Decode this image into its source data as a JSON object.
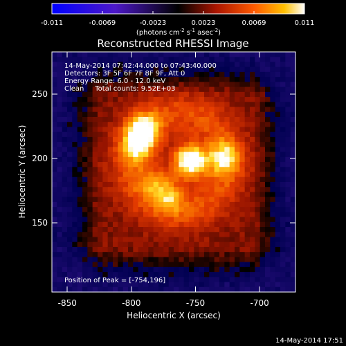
{
  "colorbar": {
    "ticks": [
      "-0.011",
      "-0.0069",
      "-0.0023",
      "0.0023",
      "0.0069",
      "0.011"
    ],
    "unit_parts": [
      "(photons cm",
      "-2",
      " s",
      "-1",
      " asec",
      "-2",
      ")"
    ]
  },
  "title": "Reconstructed RHESSI Image",
  "info": {
    "line1": "14-May-2014 07:42:44.000 to 07:43:40.000",
    "line2": "Detectors: 3F 5F 6F 7F 8F 9F, Att 0",
    "line3": "Energy Range: 6.0 - 12.0 keV",
    "line4": "Clean     Total counts: 9.52E+03"
  },
  "peak_label": "Position of Peak = [-754,196]",
  "timestamp": "14-May-2014 17:51",
  "chart_data": {
    "type": "heatmap",
    "title": "Reconstructed RHESSI Image",
    "xlabel": "Heliocentric X (arcsec)",
    "ylabel": "Heliocentric Y (arcsec)",
    "xlim": [
      -862,
      -672
    ],
    "ylim": [
      96,
      283
    ],
    "x_ticks": [
      {
        "value": -850,
        "label": "-850"
      },
      {
        "value": -800,
        "label": "-800"
      },
      {
        "value": -750,
        "label": "-750"
      },
      {
        "value": -700,
        "label": "-700"
      }
    ],
    "y_ticks": [
      {
        "value": 150,
        "label": "150"
      },
      {
        "value": 200,
        "label": "200"
      },
      {
        "value": 250,
        "label": "250"
      }
    ],
    "color_range": [
      -0.011,
      0.011
    ],
    "peak": {
      "x": -754,
      "y": 196
    },
    "sources": [
      {
        "x": -754,
        "y": 198,
        "amplitude": 1.0
      },
      {
        "x": -791,
        "y": 222,
        "amplitude": 0.65
      },
      {
        "x": -795,
        "y": 209,
        "amplitude": 0.45
      },
      {
        "x": -728,
        "y": 200,
        "amplitude": 0.5
      },
      {
        "x": -770,
        "y": 170,
        "amplitude": 0.4
      },
      {
        "x": -782,
        "y": 182,
        "amplitude": 0.35
      }
    ],
    "grid": false
  }
}
